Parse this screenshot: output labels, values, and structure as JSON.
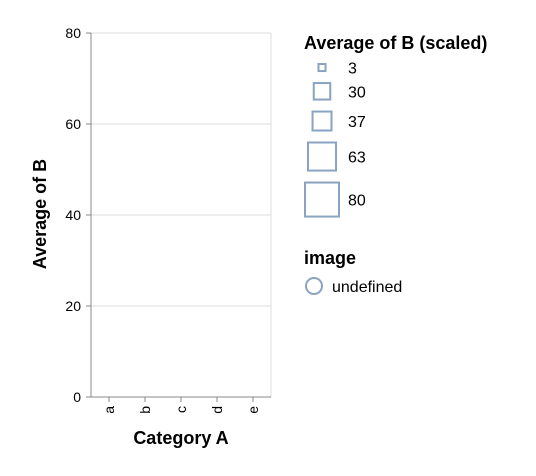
{
  "chart_data": {
    "type": "scatter",
    "xlabel": "Category A",
    "ylabel": "Average of B",
    "categories": [
      "a",
      "b",
      "c",
      "d",
      "e"
    ],
    "ylim": [
      0,
      80
    ],
    "yticks": [
      0,
      20,
      40,
      60,
      80
    ],
    "grid": true,
    "points": [],
    "legend_size": {
      "title": "Average of B (scaled)",
      "entries": [
        "3",
        "30",
        "37",
        "63",
        "80"
      ],
      "values": [
        3,
        30,
        37,
        63,
        80
      ]
    },
    "legend_shape": {
      "title": "image",
      "entries": [
        "undefined"
      ]
    },
    "legend_placement": "right",
    "colors": {
      "mark_stroke": "#8aa3c0",
      "axis": "#888888",
      "grid": "#dddddd"
    }
  }
}
